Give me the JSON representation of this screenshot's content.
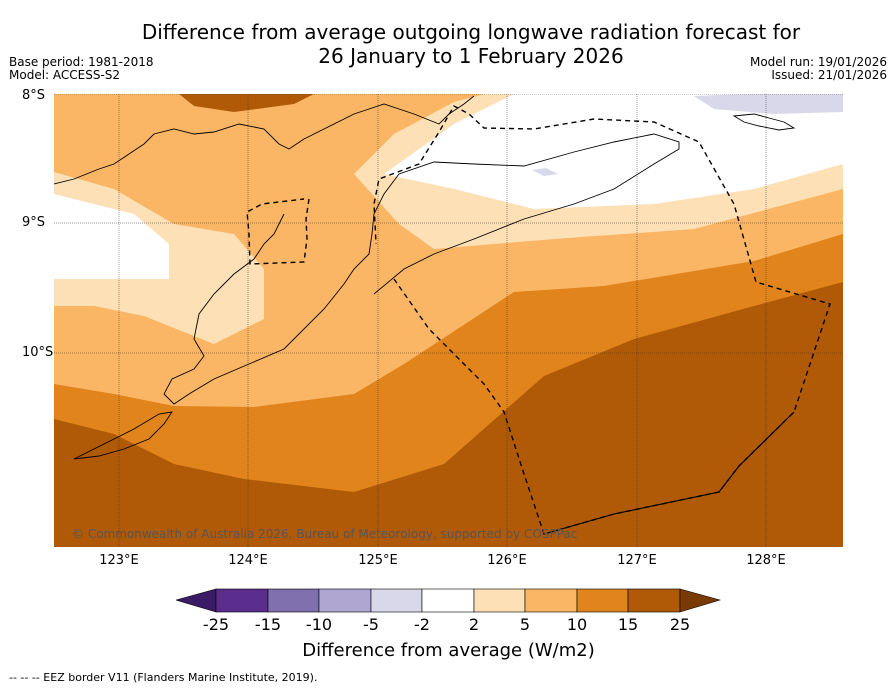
{
  "title_line1": "Difference from average outgoing longwave radiation forecast for",
  "title_line2": "26 January to 1 February 2026",
  "meta_left": [
    "Base period: 1981-2018",
    "Model: ACCESS-S2"
  ],
  "meta_right": [
    "Model run: 19/01/2026",
    "Issued: 21/01/2026"
  ],
  "lat_labels": [
    "8°S",
    "9°S",
    "10°S"
  ],
  "lon_labels": [
    "123°E",
    "124°E",
    "125°E",
    "126°E",
    "127°E",
    "128°E"
  ],
  "copyright": "© Commonwealth of Australia 2026, Bureau of Meteorology, supported by COSPPac",
  "colorbar": {
    "ticks": [
      "-25",
      "-15",
      "-10",
      "-5",
      "-2",
      "2",
      "5",
      "10",
      "15",
      "25"
    ],
    "colors": [
      "#3b1a66",
      "#5a2d8c",
      "#7f70ad",
      "#afa7d1",
      "#d8d8ea",
      "#ffffff",
      "#fde0b5",
      "#fbb665",
      "#e0841b",
      "#b05a08",
      "#7a3a05"
    ],
    "label": "Difference from average (W/m2)"
  },
  "footer": "--  --  -- EEZ border V11 (Flanders Marine Institute, 2019)."
}
